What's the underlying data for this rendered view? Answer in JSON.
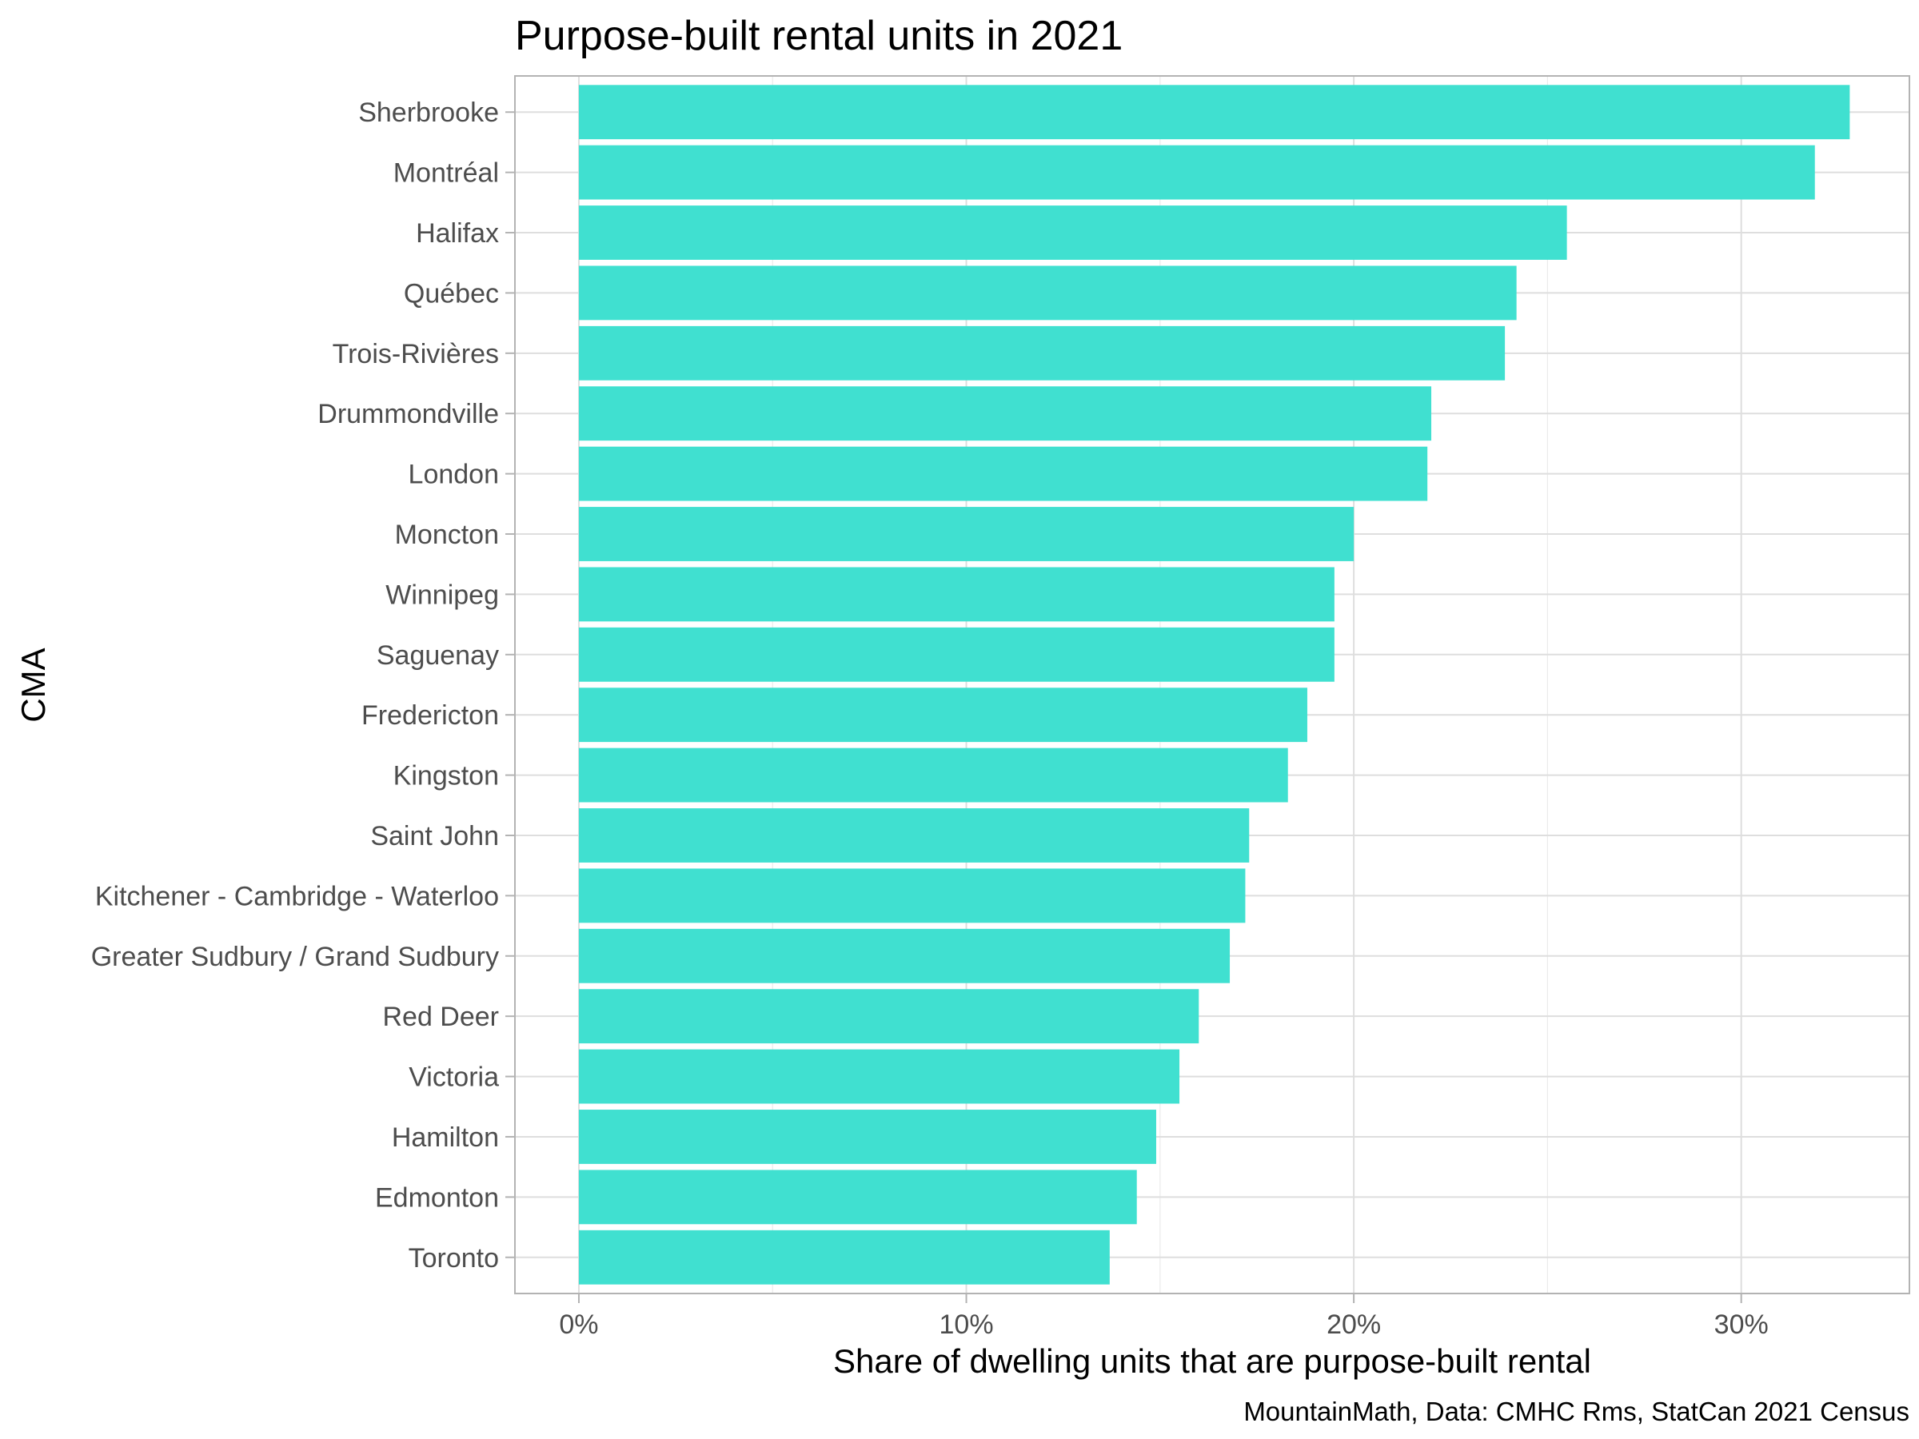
{
  "chart_data": {
    "type": "bar",
    "orientation": "horizontal",
    "title": "Purpose-built rental units in 2021",
    "xlabel": "Share of dwelling units that are purpose-built rental",
    "ylabel": "CMA",
    "caption": "MountainMath, Data: CMHC Rms, StatCan 2021 Census",
    "bar_color": "#40E0D0",
    "xlim": [
      -0.0165,
      0.3434
    ],
    "x_ticks": [
      {
        "value": 0,
        "label": "0%"
      },
      {
        "value": 0.1,
        "label": "10%"
      },
      {
        "value": 0.2,
        "label": "20%"
      },
      {
        "value": 0.3,
        "label": "30%"
      }
    ],
    "grid": true,
    "categories": [
      "Sherbrooke",
      "Montréal",
      "Halifax",
      "Québec",
      "Trois-Rivières",
      "Drummondville",
      "London",
      "Moncton",
      "Winnipeg",
      "Saguenay",
      "Fredericton",
      "Kingston",
      "Saint John",
      "Kitchener - Cambridge - Waterloo",
      "Greater Sudbury / Grand Sudbury",
      "Red Deer",
      "Victoria",
      "Hamilton",
      "Edmonton",
      "Toronto"
    ],
    "values": [
      0.328,
      0.319,
      0.255,
      0.242,
      0.239,
      0.22,
      0.219,
      0.2,
      0.195,
      0.195,
      0.188,
      0.183,
      0.173,
      0.172,
      0.168,
      0.16,
      0.155,
      0.149,
      0.144,
      0.137
    ]
  }
}
